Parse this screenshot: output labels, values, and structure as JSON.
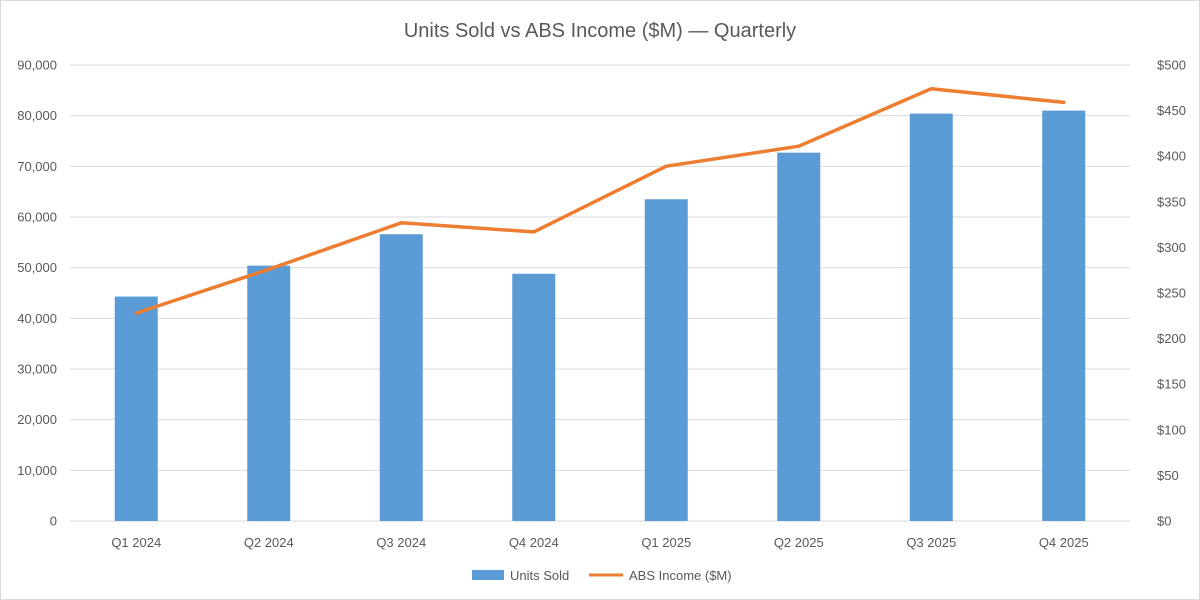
{
  "chart_data": {
    "type": "bar",
    "title": "Units Sold vs ABS Income ($M) — Quarterly",
    "categories": [
      "Q1 2024",
      "Q2 2024",
      "Q3 2024",
      "Q4 2024",
      "Q1 2025",
      "Q2 2025",
      "Q3 2025",
      "Q4 2025"
    ],
    "series": [
      {
        "name": "Units Sold",
        "type": "bar",
        "axis": "left",
        "color": "#5b9bd5",
        "values": [
          44300,
          50400,
          56600,
          48800,
          63500,
          72700,
          80400,
          81000
        ]
      },
      {
        "name": "ABS Income ($M)",
        "type": "line",
        "axis": "right",
        "color": "#ed7d31",
        "values": [
          228,
          276,
          327,
          317,
          389,
          411,
          474,
          459
        ]
      }
    ],
    "y_left": {
      "lim": [
        0,
        90000
      ],
      "ticks": [
        0,
        10000,
        20000,
        30000,
        40000,
        50000,
        60000,
        70000,
        80000,
        90000
      ],
      "tick_labels": [
        "0",
        "10,000",
        "20,000",
        "30,000",
        "40,000",
        "50,000",
        "60,000",
        "70,000",
        "80,000",
        "90,000"
      ]
    },
    "y_right": {
      "lim": [
        0,
        500
      ],
      "ticks": [
        0,
        50,
        100,
        150,
        200,
        250,
        300,
        350,
        400,
        450,
        500
      ],
      "tick_labels": [
        "$0",
        "$50",
        "$100",
        "$150",
        "$200",
        "$250",
        "$300",
        "$350",
        "$400",
        "$450",
        "$500"
      ]
    },
    "grid": true,
    "legend_position": "bottom"
  }
}
